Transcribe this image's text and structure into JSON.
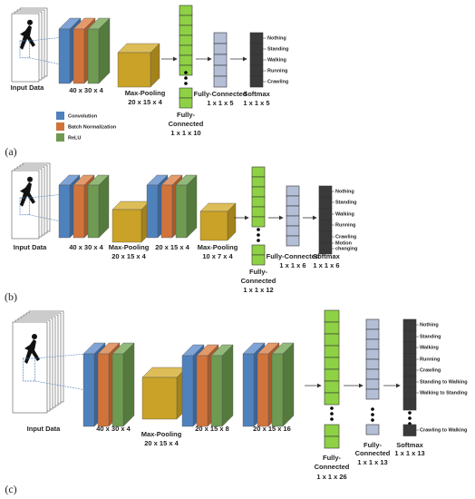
{
  "legend": [
    "Convolution",
    "Batch Normalization",
    "ReLU"
  ],
  "panels": [
    {
      "label": "(a)",
      "input": "Input Data",
      "conv": [
        "40 x 30 x 4"
      ],
      "pool": [
        [
          "Max-Pooling",
          "20 x 15 x 4"
        ]
      ],
      "fc1": [
        "Fully-",
        "Connected",
        "1 x 1 x 10"
      ],
      "fc2": [
        "Fully-Connected",
        "1 x 1 x 5"
      ],
      "softmax": [
        "Softmax",
        "1 x 1 x 5"
      ],
      "outputs": [
        "Nothing",
        "Standing",
        "Walking",
        "Running",
        "Crawling"
      ]
    },
    {
      "label": "(b)",
      "input": "Input Data",
      "conv": [
        "40 x 30 x 4",
        "20 x 15 x 4"
      ],
      "pool": [
        [
          "Max-Pooling",
          "20 x 15 x 4"
        ],
        [
          "Max-Pooling",
          "10 x 7 x 4"
        ]
      ],
      "fc1": [
        "Fully-",
        "Connected",
        "1 x 1 x 12"
      ],
      "fc2": [
        "Fully-Connected",
        "1 x 1 x 6"
      ],
      "softmax": [
        "Softmax",
        "1 x 1 x 6"
      ],
      "outputs": [
        "Nothing",
        "Standing",
        "Walking",
        "Running",
        "Crawling",
        "Motion",
        "changing"
      ]
    },
    {
      "label": "(c)",
      "input": "Input Data",
      "conv": [
        "40 x 30 x 4",
        "20 x 15 x 8",
        "20 x 15 x 16"
      ],
      "pool": [
        [
          "Max-Pooling",
          "20 x 15 x 4"
        ]
      ],
      "fc1": [
        "Fully-",
        "Connected",
        "1 x 1 x 26"
      ],
      "fc2": [
        "Fully-",
        "Connected",
        "1 x 1 x 13"
      ],
      "softmax": [
        "Softmax",
        "1 x 1 x 13"
      ],
      "outputs": [
        "Nothing",
        "Standing",
        "Walking",
        "Running",
        "Crawling",
        "Standing to Walking",
        "Walking to Standing",
        "Crawling to Walking"
      ]
    }
  ]
}
